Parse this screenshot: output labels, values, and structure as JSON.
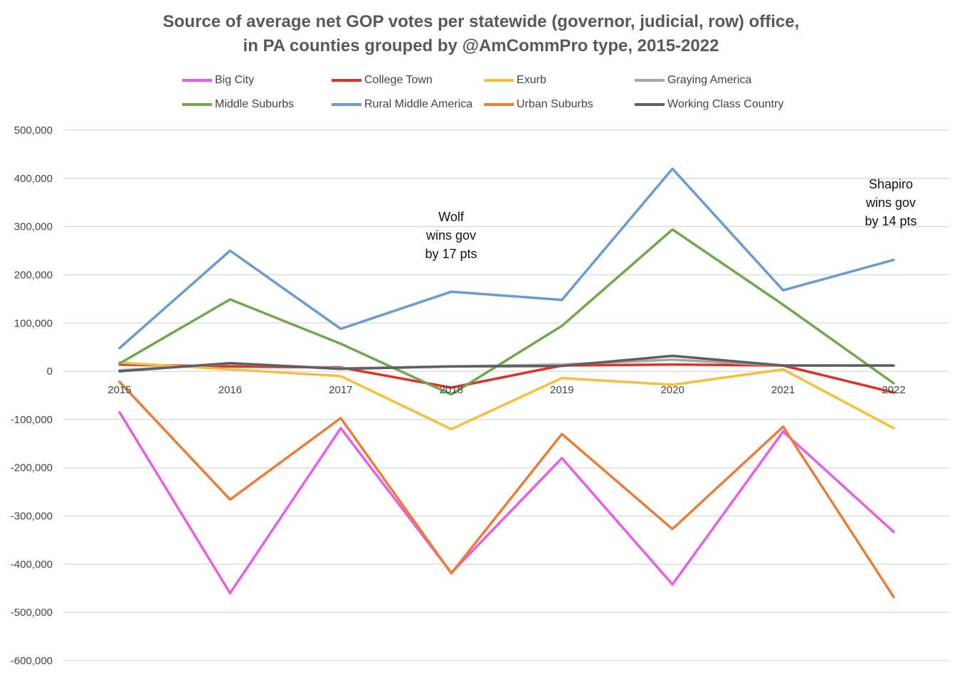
{
  "chart_data": {
    "type": "line",
    "title_line1": "Source of average net GOP votes per statewide (governor, judicial, row) office,",
    "title_line2": "in PA counties grouped by @AmCommPro type, 2015-2022",
    "x": [
      "2015",
      "2016",
      "2017",
      "2018",
      "2019",
      "2020",
      "2021",
      "2022"
    ],
    "ylim": [
      -600000,
      500000
    ],
    "yticks": [
      "500,000",
      "400,000",
      "300,000",
      "200,000",
      "100,000",
      "0",
      "-100,000",
      "-200,000",
      "-300,000",
      "-400,000",
      "-500,000",
      "-600,000"
    ],
    "ytick_values": [
      500000,
      400000,
      300000,
      200000,
      100000,
      0,
      -100000,
      -200000,
      -300000,
      -400000,
      -500000,
      -600000
    ],
    "grid": true,
    "legend_position": "top",
    "series": [
      {
        "name": "Big City",
        "color": "#e85ee8",
        "values": [
          -85000,
          -460000,
          -118000,
          -418000,
          -180000,
          -442000,
          -125000,
          -333000
        ]
      },
      {
        "name": "College Town",
        "color": "#e0302a",
        "values": [
          14000,
          10000,
          8000,
          -34000,
          12000,
          14000,
          12000,
          -44000
        ]
      },
      {
        "name": "Exurb",
        "color": "#f5bf42",
        "values": [
          18000,
          4000,
          -10000,
          -120000,
          -14000,
          -28000,
          4000,
          -118000
        ]
      },
      {
        "name": "Graying America",
        "color": "#a6a6a6",
        "values": [
          2000,
          16000,
          6000,
          10000,
          14000,
          24000,
          12000,
          12000
        ]
      },
      {
        "name": "Middle Suburbs",
        "color": "#70a850",
        "values": [
          16000,
          149000,
          57000,
          -48000,
          94000,
          294000,
          138000,
          -25000
        ]
      },
      {
        "name": "Rural Middle America",
        "color": "#6a9bd1",
        "values": [
          48000,
          250000,
          88000,
          165000,
          148000,
          420000,
          168000,
          231000
        ]
      },
      {
        "name": "Urban Suburbs",
        "color": "#ea7d37",
        "values": [
          -22000,
          -266000,
          -97000,
          -419000,
          -130000,
          -327000,
          -115000,
          -468000
        ]
      },
      {
        "name": "Working Class Country",
        "color": "#5f5f5f",
        "values": [
          0,
          17000,
          5000,
          10000,
          11000,
          32000,
          12000,
          12000
        ]
      }
    ],
    "annotations": [
      {
        "lines": [
          "Wolf",
          "wins gov",
          "by 17 pts"
        ]
      },
      {
        "lines": [
          "Shapiro",
          "wins gov",
          "by 14 pts"
        ]
      }
    ]
  }
}
